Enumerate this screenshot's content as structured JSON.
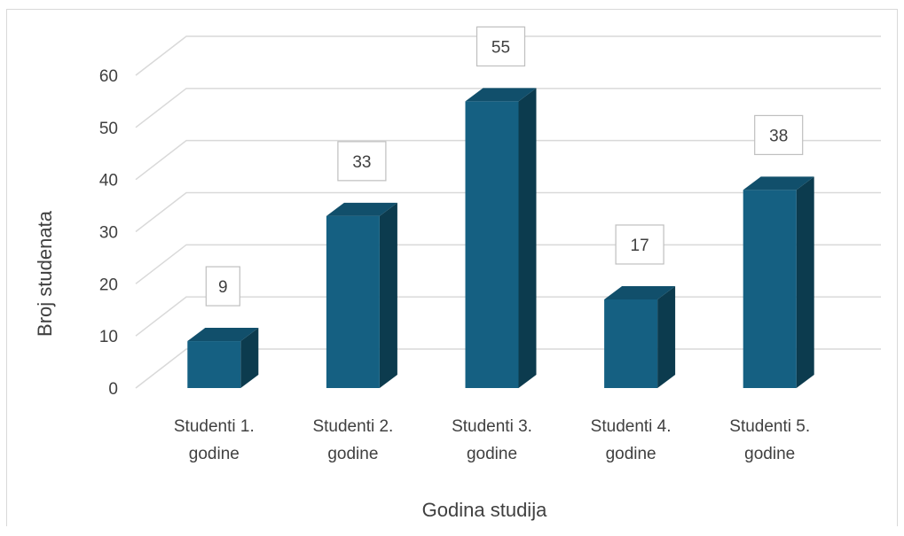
{
  "chart_data": {
    "type": "bar",
    "title": "",
    "categories": [
      [
        "Studenti 1.",
        "godine"
      ],
      [
        "Studenti 2.",
        "godine"
      ],
      [
        "Studenti 3.",
        "godine"
      ],
      [
        "Studenti 4.",
        "godine"
      ],
      [
        "Studenti 5.",
        "godine"
      ]
    ],
    "values": [
      9,
      33,
      55,
      17,
      38
    ],
    "xlabel": "Godina studija",
    "ylabel": "Broj studenata",
    "ylim": [
      0,
      60
    ],
    "yticks": [
      0,
      10,
      20,
      30,
      40,
      50,
      60
    ],
    "grid": true,
    "style": "3d-column",
    "colors": {
      "bar_front": "#156082",
      "bar_side": "#0c3b4e",
      "bar_top": "#114f6b",
      "grid": "#d9d9d9",
      "label_border": "#bfbfbf"
    }
  }
}
